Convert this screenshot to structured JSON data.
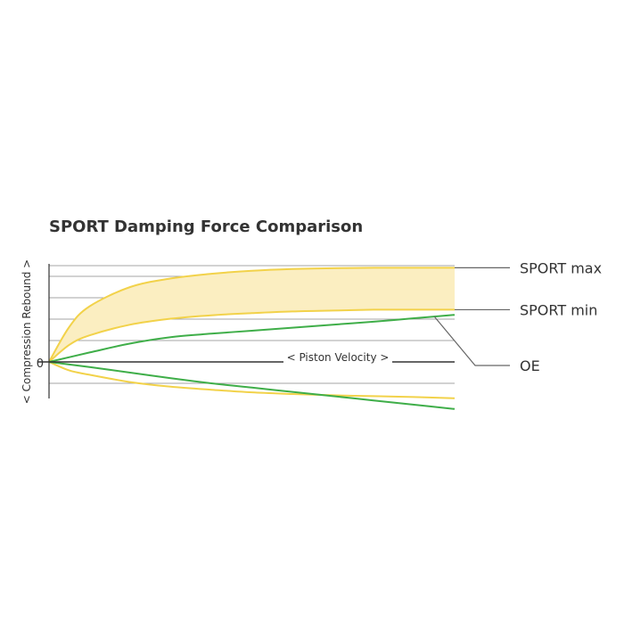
{
  "chart_data": {
    "type": "line",
    "title": "SPORT Damping Force Comparison",
    "ylabel": "< Compression Rebound >",
    "xlabel": "< Piston Velocity >",
    "zero_label": "0",
    "xlim": [
      0,
      10
    ],
    "ylim": [
      -1.0,
      2.5
    ],
    "grid": true,
    "series": [
      {
        "name": "SPORT max",
        "color": "#f2d24a",
        "x": [
          0,
          0.5,
          1,
          2,
          3,
          4,
          5,
          6,
          7,
          8,
          9,
          10
        ],
        "y": [
          0,
          0.82,
          1.3,
          1.75,
          1.95,
          2.06,
          2.13,
          2.17,
          2.19,
          2.2,
          2.2,
          2.2
        ]
      },
      {
        "name": "SPORT min",
        "color": "#f2d24a",
        "x": [
          0,
          0.5,
          1,
          2,
          3,
          4,
          5,
          6,
          7,
          8,
          9,
          10
        ],
        "y": [
          0,
          0.4,
          0.62,
          0.87,
          1.01,
          1.09,
          1.14,
          1.18,
          1.2,
          1.22,
          1.22,
          1.22
        ]
      },
      {
        "name": "OE",
        "color": "#3fae49",
        "x": [
          0,
          1,
          2,
          3,
          4,
          5,
          6,
          7,
          8,
          9,
          10
        ],
        "y": [
          0,
          0.22,
          0.43,
          0.58,
          0.66,
          0.73,
          0.8,
          0.87,
          0.94,
          1.02,
          1.1
        ]
      },
      {
        "name": "",
        "color": "#f2d24a",
        "x": [
          0,
          0.5,
          1,
          2,
          3,
          4,
          5,
          6,
          7,
          8,
          9,
          10
        ],
        "y": [
          0,
          -0.2,
          -0.3,
          -0.47,
          -0.58,
          -0.65,
          -0.71,
          -0.75,
          -0.78,
          -0.8,
          -0.82,
          -0.85
        ]
      },
      {
        "name": "",
        "color": "#3fae49",
        "x": [
          0,
          1,
          2,
          3,
          4,
          5,
          6,
          7,
          8,
          9,
          10
        ],
        "y": [
          0,
          -0.12,
          -0.25,
          -0.38,
          -0.5,
          -0.6,
          -0.7,
          -0.8,
          -0.9,
          -1.0,
          -1.1
        ]
      }
    ],
    "band": {
      "upper": "SPORT max",
      "lower": "SPORT min",
      "color": "#fbeec1"
    },
    "legend_labels": [
      "SPORT max",
      "SPORT min",
      "OE"
    ],
    "legend_placement": "right"
  },
  "colors": {
    "axis": "#333333",
    "grid": "#888888",
    "leader": "#666666",
    "text": "#333333"
  }
}
